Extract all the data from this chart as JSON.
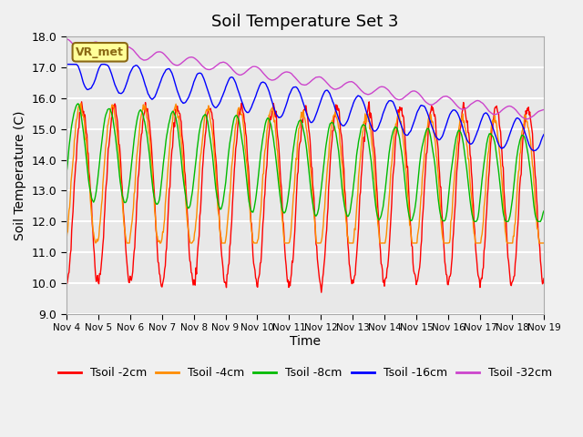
{
  "title": "Soil Temperature Set 3",
  "xlabel": "Time",
  "ylabel": "Soil Temperature (C)",
  "ylim": [
    9.0,
    18.0
  ],
  "yticks": [
    9.0,
    10.0,
    11.0,
    12.0,
    13.0,
    14.0,
    15.0,
    16.0,
    17.0,
    18.0
  ],
  "x_labels": [
    "Nov 4",
    "Nov 5",
    "Nov 6",
    "Nov 7",
    "Nov 8",
    "Nov 9",
    "Nov 10",
    "Nov 11",
    "Nov 12",
    "Nov 13",
    "Nov 14",
    "Nov 15",
    "Nov 16",
    "Nov 17",
    "Nov 18",
    "Nov 19"
  ],
  "legend_entries": [
    "Tsoil -2cm",
    "Tsoil -4cm",
    "Tsoil -8cm",
    "Tsoil -16cm",
    "Tsoil -32cm"
  ],
  "line_colors": [
    "#ff0000",
    "#ff8c00",
    "#00bb00",
    "#0000ff",
    "#cc44cc"
  ],
  "plot_bg_color": "#e8e8e8",
  "fig_bg_color": "#f0f0f0",
  "grid_color": "#ffffff",
  "vr_met_label": "VR_met",
  "vr_met_bg": "#ffff99",
  "vr_met_border": "#8b6914",
  "num_points": 720
}
